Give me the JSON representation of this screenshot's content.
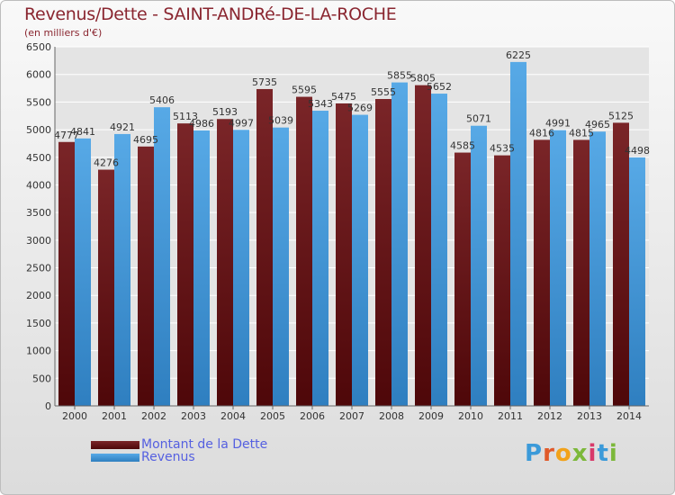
{
  "header": {
    "title": "Revenus/Dette - SAINT-ANDRé-DE-LA-ROCHE",
    "subtitle": "(en milliers d'€)"
  },
  "legend": {
    "debt_label": "Montant de la Dette",
    "revenue_label": "Revenus"
  },
  "logo": {
    "text": "Proxiti"
  },
  "colors": {
    "debt": "#7a2528",
    "debt_dark": "#4e0709",
    "revenue": "#57a9e6",
    "revenue_dark": "#2f7fc0",
    "title": "#8a2630",
    "legend_text": "#5560e0"
  },
  "chart_data": {
    "type": "bar",
    "categories": [
      "2000",
      "2001",
      "2002",
      "2003",
      "2004",
      "2005",
      "2006",
      "2007",
      "2008",
      "2009",
      "2010",
      "2011",
      "2012",
      "2013",
      "2014"
    ],
    "series": [
      {
        "name": "Montant de la Dette",
        "values": [
          4777,
          4276,
          4695,
          5113,
          5193,
          5735,
          5595,
          5475,
          5555,
          5805,
          4585,
          4535,
          4816,
          4815,
          5125
        ],
        "labels": [
          "4777",
          "4276",
          "4695",
          "5113",
          "5193",
          "5735",
          "5595",
          "5475",
          "5555",
          "5805",
          "4585",
          "4535",
          "4816",
          "4815",
          "5125"
        ]
      },
      {
        "name": "Revenus",
        "values": [
          4841,
          4921,
          5406,
          4986,
          4997,
          5039,
          5343,
          5269,
          5855,
          5652,
          5071,
          6225,
          4991,
          4965,
          4498
        ],
        "labels": [
          "4841",
          "4921",
          "5406",
          "4986",
          "4997",
          "5039",
          "5343",
          "5269",
          "5855",
          "5652",
          "5071",
          "6225",
          "4991",
          "4965",
          "4498"
        ]
      }
    ],
    "yticks": [
      0,
      500,
      1000,
      1500,
      2000,
      2500,
      3000,
      3500,
      4000,
      4500,
      5000,
      5500,
      6000,
      6500
    ],
    "ylim": [
      0,
      6500
    ],
    "grid": true,
    "legend_position": "bottom-left"
  }
}
